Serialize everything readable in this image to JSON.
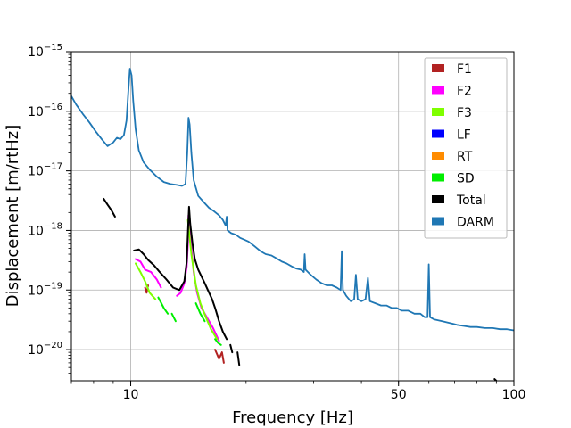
{
  "chart_data": {
    "type": "line",
    "title": "",
    "xlabel": "Frequency [Hz]",
    "ylabel": "Displacement [m/rtHz]",
    "x_scale": "log",
    "y_scale": "log",
    "xlim": [
      7,
      100
    ],
    "ylim": [
      3e-21,
      1e-15
    ],
    "grid": true,
    "legend_position": "top-right",
    "x_tick_labels": [
      {
        "value": 10,
        "label": "10"
      },
      {
        "value": 50,
        "label": "50"
      },
      {
        "value": 100,
        "label": "100"
      }
    ],
    "y_tick_labels": [
      {
        "value": 1e-20,
        "base": "10",
        "exp": "−20"
      },
      {
        "value": 1e-19,
        "base": "10",
        "exp": "−19"
      },
      {
        "value": 1e-18,
        "base": "10",
        "exp": "−18"
      },
      {
        "value": 1e-17,
        "base": "10",
        "exp": "−17"
      },
      {
        "value": 1e-16,
        "base": "10",
        "exp": "−16"
      },
      {
        "value": 1e-15,
        "base": "10",
        "exp": "−15"
      }
    ],
    "series": [
      {
        "name": "F1",
        "color": "#b22222",
        "segments": [
          [
            [
              10.9,
              1.1e-19
            ],
            [
              11.0,
              9e-20
            ],
            [
              11.1,
              1.2e-19
            ]
          ],
          [
            [
              16.6,
              1e-20
            ],
            [
              17.0,
              7e-21
            ],
            [
              17.3,
              9e-21
            ],
            [
              17.5,
              6e-21
            ]
          ]
        ]
      },
      {
        "name": "F2",
        "color": "#ff00ff",
        "segments": [
          [
            [
              10.3,
              3.3e-19
            ],
            [
              10.6,
              3e-19
            ],
            [
              10.9,
              2.2e-19
            ],
            [
              11.3,
              2e-19
            ],
            [
              11.7,
              1.5e-19
            ],
            [
              12.0,
              1.1e-19
            ]
          ],
          [
            [
              13.2,
              8e-20
            ],
            [
              13.5,
              9e-20
            ],
            [
              13.8,
              1.3e-19
            ],
            [
              14.0,
              2.5e-19
            ],
            [
              14.1,
              6e-19
            ],
            [
              14.15,
              1.8e-18
            ],
            [
              14.2,
              1.2e-18
            ],
            [
              14.4,
              5e-19
            ],
            [
              14.6,
              2e-19
            ],
            [
              14.9,
              9e-20
            ],
            [
              15.3,
              5e-20
            ],
            [
              15.8,
              3.5e-20
            ],
            [
              16.4,
              2.3e-20
            ],
            [
              17.0,
              1.4e-20
            ]
          ]
        ]
      },
      {
        "name": "F3",
        "color": "#7fff00",
        "segments": [
          [
            [
              10.3,
              2.8e-19
            ],
            [
              10.6,
              2e-19
            ],
            [
              10.9,
              1.4e-19
            ],
            [
              11.2,
              9e-20
            ],
            [
              11.6,
              7e-20
            ]
          ],
          [
            [
              14.1,
              1.5e-18
            ],
            [
              14.4,
              4e-19
            ],
            [
              14.8,
              1.2e-19
            ],
            [
              15.2,
              6e-20
            ],
            [
              15.7,
              3.5e-20
            ],
            [
              16.2,
              2.2e-20
            ],
            [
              16.8,
              1.5e-20
            ]
          ]
        ]
      },
      {
        "name": "LF",
        "color": "#0000ff",
        "segments": []
      },
      {
        "name": "RT",
        "color": "#ff8c00",
        "segments": []
      },
      {
        "name": "SD",
        "color": "#00ee00",
        "segments": [
          [
            [
              11.8,
              7.5e-20
            ],
            [
              12.2,
              5e-20
            ],
            [
              12.5,
              4e-20
            ]
          ],
          [
            [
              12.8,
              4e-20
            ],
            [
              13.1,
              3e-20
            ]
          ],
          [
            [
              14.8,
              6e-20
            ],
            [
              15.2,
              4e-20
            ],
            [
              15.6,
              3e-20
            ]
          ],
          [
            [
              16.6,
              1.5e-20
            ],
            [
              16.9,
              1.3e-20
            ],
            [
              17.2,
              1.2e-20
            ]
          ]
        ]
      },
      {
        "name": "Total",
        "color": "#000000",
        "segments": [
          [
            [
              8.5,
              3.4e-18
            ],
            [
              8.7,
              2.7e-18
            ],
            [
              8.9,
              2.2e-18
            ],
            [
              9.1,
              1.7e-18
            ]
          ],
          [
            [
              10.2,
              4.6e-19
            ],
            [
              10.5,
              4.8e-19
            ],
            [
              10.8,
              4e-19
            ],
            [
              11.1,
              3.2e-19
            ],
            [
              11.5,
              2.6e-19
            ],
            [
              11.9,
              2e-19
            ],
            [
              12.4,
              1.5e-19
            ],
            [
              12.9,
              1.1e-19
            ],
            [
              13.4,
              1e-19
            ],
            [
              13.8,
              1.4e-19
            ],
            [
              14.0,
              3e-19
            ],
            [
              14.1,
              9e-19
            ],
            [
              14.2,
              2.5e-18
            ],
            [
              14.3,
              1.3e-18
            ],
            [
              14.5,
              6e-19
            ],
            [
              14.7,
              3.3e-19
            ],
            [
              15.0,
              2.2e-19
            ],
            [
              15.3,
              1.7e-19
            ],
            [
              15.6,
              1.3e-19
            ],
            [
              15.9,
              1e-19
            ],
            [
              16.3,
              7e-20
            ],
            [
              16.6,
              5e-20
            ],
            [
              17.0,
              3e-20
            ],
            [
              17.4,
              2e-20
            ],
            [
              17.8,
              1.5e-20
            ]
          ],
          [
            [
              18.2,
              1.2e-20
            ],
            [
              18.4,
              9e-21
            ]
          ],
          [
            [
              19.0,
              9e-21
            ],
            [
              19.2,
              5.5e-21
            ]
          ],
          [
            [
              89.0,
              3.2e-21
            ],
            [
              90.0,
              3e-21
            ]
          ]
        ]
      },
      {
        "name": "DARM",
        "color": "#1f77b4",
        "segments": [
          [
            [
              7.0,
              1.8e-16
            ],
            [
              7.2,
              1.3e-16
            ],
            [
              7.5,
              9e-17
            ],
            [
              7.8,
              6.5e-17
            ],
            [
              8.1,
              4.6e-17
            ],
            [
              8.4,
              3.4e-17
            ],
            [
              8.7,
              2.6e-17
            ],
            [
              8.85,
              2.8e-17
            ],
            [
              9.0,
              3e-17
            ],
            [
              9.2,
              3.6e-17
            ],
            [
              9.4,
              3.4e-17
            ],
            [
              9.6,
              4e-17
            ],
            [
              9.75,
              7e-17
            ],
            [
              9.85,
              2e-16
            ],
            [
              9.95,
              5.2e-16
            ],
            [
              10.05,
              4e-16
            ],
            [
              10.15,
              1.5e-16
            ],
            [
              10.3,
              5e-17
            ],
            [
              10.5,
              2.2e-17
            ],
            [
              10.8,
              1.4e-17
            ],
            [
              11.2,
              1.05e-17
            ],
            [
              11.7,
              8e-18
            ],
            [
              12.2,
              6.5e-18
            ],
            [
              12.7,
              6e-18
            ],
            [
              13.2,
              5.8e-18
            ],
            [
              13.6,
              5.6e-18
            ],
            [
              13.9,
              6e-18
            ],
            [
              14.05,
              2e-17
            ],
            [
              14.15,
              7.8e-17
            ],
            [
              14.25,
              6e-17
            ],
            [
              14.4,
              2e-17
            ],
            [
              14.6,
              7e-18
            ],
            [
              15.0,
              3.8e-18
            ],
            [
              15.5,
              3e-18
            ],
            [
              16.0,
              2.4e-18
            ],
            [
              16.5,
              2.1e-18
            ],
            [
              17.0,
              1.8e-18
            ],
            [
              17.4,
              1.5e-18
            ],
            [
              17.7,
              1.2e-18
            ],
            [
              17.8,
              1.7e-18
            ],
            [
              17.9,
              1e-18
            ],
            [
              18.3,
              9e-19
            ],
            [
              18.8,
              8.5e-19
            ],
            [
              19.3,
              7.5e-19
            ],
            [
              19.8,
              7e-19
            ],
            [
              20.3,
              6.5e-19
            ],
            [
              21.0,
              5.5e-19
            ],
            [
              21.8,
              4.5e-19
            ],
            [
              22.5,
              4e-19
            ],
            [
              23.3,
              3.8e-19
            ],
            [
              24.0,
              3.4e-19
            ],
            [
              24.8,
              3e-19
            ],
            [
              25.5,
              2.8e-19
            ],
            [
              26.3,
              2.5e-19
            ],
            [
              27.0,
              2.3e-19
            ],
            [
              27.8,
              2.2e-19
            ],
            [
              28.3,
              2e-19
            ],
            [
              28.45,
              4e-19
            ],
            [
              28.6,
              2.2e-19
            ],
            [
              29.5,
              1.8e-19
            ],
            [
              30.5,
              1.5e-19
            ],
            [
              31.5,
              1.3e-19
            ],
            [
              32.5,
              1.2e-19
            ],
            [
              33.5,
              1.2e-19
            ],
            [
              34.5,
              1.1e-19
            ],
            [
              35.3,
              1e-19
            ],
            [
              35.55,
              4.5e-19
            ],
            [
              35.8,
              1e-19
            ],
            [
              36.5,
              8e-20
            ],
            [
              37.5,
              6.5e-20
            ],
            [
              38.3,
              7e-20
            ],
            [
              38.7,
              1.8e-19
            ],
            [
              39.1,
              7e-20
            ],
            [
              40.0,
              6.5e-20
            ],
            [
              41.0,
              7e-20
            ],
            [
              41.6,
              1.6e-19
            ],
            [
              42.1,
              6.5e-20
            ],
            [
              43.5,
              6e-20
            ],
            [
              45.0,
              5.5e-20
            ],
            [
              46.5,
              5.5e-20
            ],
            [
              48.0,
              5e-20
            ],
            [
              49.5,
              5e-20
            ],
            [
              51.0,
              4.5e-20
            ],
            [
              53.0,
              4.5e-20
            ],
            [
              55.0,
              4e-20
            ],
            [
              57.0,
              4e-20
            ],
            [
              58.5,
              3.5e-20
            ],
            [
              59.5,
              3.5e-20
            ],
            [
              59.95,
              2.7e-19
            ],
            [
              60.4,
              3.5e-20
            ],
            [
              62.0,
              3.2e-20
            ],
            [
              65.0,
              3e-20
            ],
            [
              68.0,
              2.8e-20
            ],
            [
              71.0,
              2.6e-20
            ],
            [
              74.0,
              2.5e-20
            ],
            [
              77.0,
              2.4e-20
            ],
            [
              80.0,
              2.4e-20
            ],
            [
              84.0,
              2.3e-20
            ],
            [
              88.0,
              2.3e-20
            ],
            [
              92.0,
              2.2e-20
            ],
            [
              96.0,
              2.2e-20
            ],
            [
              100.0,
              2.1e-20
            ]
          ]
        ]
      }
    ]
  }
}
